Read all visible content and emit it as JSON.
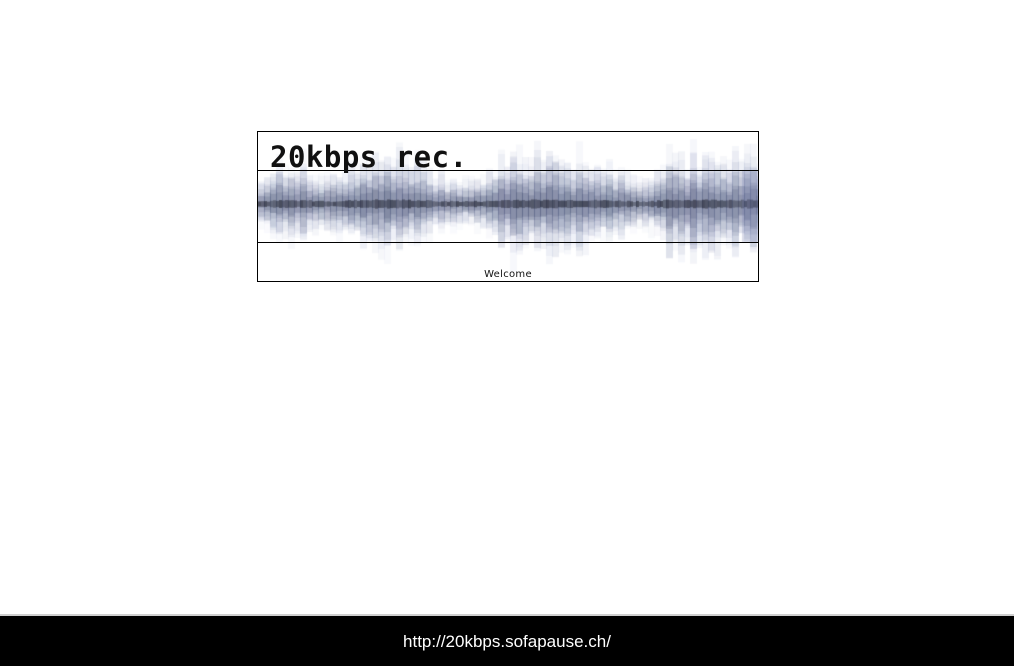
{
  "banner": {
    "logo_text": "20kbps rec.",
    "welcome_link": "Welcome",
    "waveform_description": "waveform-graphic"
  },
  "status_bar": {
    "url": "http://20kbps.sofapause.ch/"
  },
  "colors": {
    "page_background": "#ffffff",
    "banner_border": "#000000",
    "waveform_ink": "#1c1f2a",
    "waveform_tint": "#5a6488",
    "status_bar_background": "#000000",
    "status_bar_text": "#ffffff"
  }
}
